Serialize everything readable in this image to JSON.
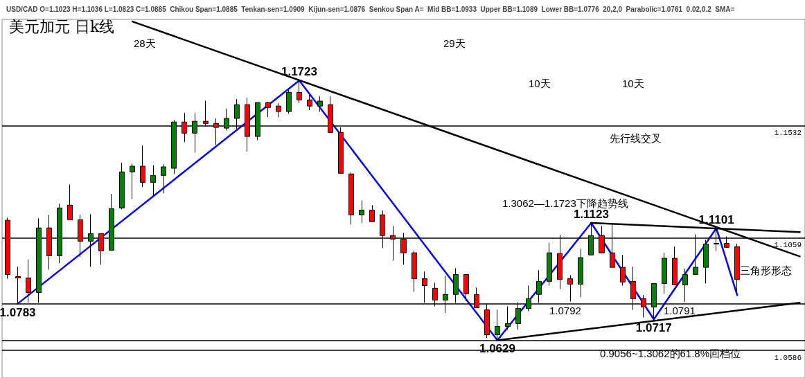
{
  "chart_data": {
    "type": "candlestick",
    "title": "美元加元 日k线",
    "subtitle": "USD/CAD O=1.1023 H=1.1036 L=1.0823 C=1.0885  Chikou Span=1.0885  Tenkan-sen=1.0909  Kijun-sen=1.0876  Senkou Span A=  Mid BB=1.0933  Upper BB=1.1089  Lower BB=1.0776  20,2,0  Parabolic=1.0761  0.02,0.2  SMA=",
    "categories": [
      null,
      null,
      null,
      null,
      null,
      null,
      null,
      null,
      null,
      null,
      null,
      null,
      null,
      null,
      null,
      null,
      null,
      null,
      null,
      null,
      null,
      null,
      null,
      null,
      null,
      null,
      null,
      null,
      null,
      null,
      null,
      null,
      null,
      null,
      null,
      null,
      null,
      null,
      null,
      null,
      null,
      null,
      null,
      null,
      null,
      null,
      null,
      null,
      null,
      null,
      null,
      null,
      null,
      null,
      null,
      null,
      null,
      null,
      null,
      null,
      null,
      null,
      null,
      null,
      null,
      null,
      null,
      null,
      null,
      null,
      null,
      null,
      null,
      null,
      null,
      null,
      null
    ],
    "ohlc": [
      [
        1.1134,
        1.1145,
        1.0888,
        1.0906
      ],
      [
        1.0897,
        1.0939,
        1.0783,
        1.0891
      ],
      [
        1.0891,
        1.0968,
        1.0787,
        1.083
      ],
      [
        1.083,
        1.1142,
        1.0787,
        1.1102
      ],
      [
        1.1102,
        1.1157,
        1.0927,
        1.0985
      ],
      [
        1.0985,
        1.1204,
        1.0953,
        1.1186
      ],
      [
        1.1198,
        1.1285,
        1.1136,
        1.1136
      ],
      [
        1.1136,
        1.1157,
        1.0979,
        1.1046
      ],
      [
        1.1046,
        1.116,
        1.0939,
        1.1078
      ],
      [
        1.1078,
        1.1078,
        1.0947,
        1.1005
      ],
      [
        1.1008,
        1.1245,
        1.1008,
        1.1183
      ],
      [
        1.1186,
        1.1376,
        1.118,
        1.1338
      ],
      [
        1.1338,
        1.1373,
        1.1224,
        1.1362
      ],
      [
        1.1362,
        1.1449,
        1.1274,
        1.1294
      ],
      [
        1.1294,
        1.1365,
        1.1239,
        1.1323
      ],
      [
        1.1323,
        1.137,
        1.1248,
        1.1359
      ],
      [
        1.1353,
        1.1556,
        1.1329,
        1.1548
      ],
      [
        1.1548,
        1.1586,
        1.1463,
        1.1501
      ],
      [
        1.1501,
        1.1586,
        1.1419,
        1.1551
      ],
      [
        1.1551,
        1.1638,
        1.153,
        1.1542
      ],
      [
        1.1542,
        1.1563,
        1.1452,
        1.1525
      ],
      [
        1.1522,
        1.1604,
        1.1513,
        1.1563
      ],
      [
        1.1563,
        1.1644,
        1.1519,
        1.1621
      ],
      [
        1.1621,
        1.165,
        1.1423,
        1.1487
      ],
      [
        1.1487,
        1.163,
        1.1472,
        1.163
      ],
      [
        1.163,
        1.1633,
        1.1569,
        1.1609
      ],
      [
        1.1615,
        1.1627,
        1.1569,
        1.1592
      ],
      [
        1.1592,
        1.1685,
        1.1583,
        1.1673
      ],
      [
        1.1673,
        1.1723,
        1.1627,
        1.1641
      ],
      [
        1.1641,
        1.1662,
        1.1598,
        1.1615
      ],
      [
        1.1615,
        1.1656,
        1.1592,
        1.1636
      ],
      [
        1.1621,
        1.1656,
        1.1504,
        1.1504
      ],
      [
        1.1504,
        1.1525,
        1.1332,
        1.1332
      ],
      [
        1.1329,
        1.1335,
        1.1116,
        1.1157
      ],
      [
        1.1157,
        1.1218,
        1.1122,
        1.1177
      ],
      [
        1.1177,
        1.1198,
        1.1128,
        1.1128
      ],
      [
        1.1157,
        1.1175,
        1.1017,
        1.107
      ],
      [
        1.107,
        1.111,
        1.0964,
        1.1055
      ],
      [
        1.1055,
        1.1081,
        1.0947,
        1.0997
      ],
      [
        1.0997,
        1.1006,
        1.0833,
        1.0888
      ],
      [
        1.0888,
        1.0918,
        1.0787,
        1.0859
      ],
      [
        1.0848,
        1.0871,
        1.0772,
        1.0798
      ],
      [
        1.0798,
        1.09,
        1.0743,
        1.0822
      ],
      [
        1.0822,
        1.0932,
        1.0787,
        1.0906
      ],
      [
        1.0906,
        1.0906,
        1.0795,
        1.0825
      ],
      [
        1.0822,
        1.0851,
        1.0766,
        1.0766
      ],
      [
        1.0757,
        1.0781,
        1.0638,
        1.0652
      ],
      [
        1.0652,
        1.0757,
        1.0629,
        1.0687
      ],
      [
        1.0687,
        1.0772,
        1.0673,
        1.0699
      ],
      [
        1.0699,
        1.0789,
        1.0673,
        1.0763
      ],
      [
        1.0763,
        1.0859,
        1.0751,
        1.0804
      ],
      [
        1.0822,
        1.0924,
        1.0787,
        1.0877
      ],
      [
        1.0877,
        1.104,
        1.0859,
        1.0997
      ],
      [
        1.0994,
        1.1073,
        1.0845,
        1.0885
      ],
      [
        1.0888,
        1.0903,
        1.0792,
        1.0865
      ],
      [
        1.0865,
        1.1014,
        1.081,
        1.0977
      ],
      [
        1.0988,
        1.1123,
        1.0988,
        1.107
      ],
      [
        1.107,
        1.111,
        1.0997,
        1.0997
      ],
      [
        1.0997,
        1.1119,
        1.0936,
        1.0936
      ],
      [
        1.0936,
        1.0988,
        1.0859,
        1.0874
      ],
      [
        1.0877,
        1.0939,
        1.0757,
        1.0804
      ],
      [
        1.0804,
        1.0819,
        1.0725,
        1.0769
      ],
      [
        1.0769,
        1.0868,
        1.0717,
        1.0868
      ],
      [
        1.0868,
        1.0997,
        1.0825,
        1.0974
      ],
      [
        1.0974,
        1.1023,
        1.0862,
        1.0862
      ],
      [
        1.0862,
        1.093,
        1.0791,
        1.0906
      ],
      [
        1.0906,
        1.1075,
        1.0906,
        1.0936
      ],
      [
        1.0936,
        1.1052,
        1.0868,
        1.1034
      ],
      [
        1.1034,
        1.1101,
        1.1005,
        1.1037
      ],
      [
        1.1037,
        1.1066,
        1.102,
        1.102
      ],
      [
        1.1023,
        1.1036,
        1.0823,
        1.0885
      ],
      null,
      null,
      null,
      null,
      null,
      null
    ],
    "colors": [
      "#ff0000",
      "#ff0000",
      "#ff0000",
      "#008000",
      "#ff0000",
      "#008000",
      "#ff0000",
      "#ff0000",
      "#008000",
      "#ff0000",
      "#008000",
      "#008000",
      "#008000",
      "#ff0000",
      "#008000",
      "#008000",
      "#008000",
      "#ff0000",
      "#008000",
      "#ff0000",
      "#ff0000",
      "#008000",
      "#008000",
      "#ff0000",
      "#008000",
      "#ff0000",
      "#ff0000",
      "#008000",
      "#ff0000",
      "#ff0000",
      "#008000",
      "#ff0000",
      "#ff0000",
      "#ff0000",
      "#008000",
      "#ff0000",
      "#ff0000",
      "#ff0000",
      "#ff0000",
      "#ff0000",
      "#ff0000",
      "#ff0000",
      "#008000",
      "#008000",
      "#ff0000",
      "#ff0000",
      "#ff0000",
      "#008000",
      "#008000",
      "#008000",
      "#008000",
      "#008000",
      "#008000",
      "#ff0000",
      "#ff0000",
      "#008000",
      "#008000",
      "#ff0000",
      "#ff0000",
      "#ff0000",
      "#ff0000",
      "#ff0000",
      "#008000",
      "#008000",
      "#ff0000",
      "#008000",
      "#008000",
      "#008000",
      "#008000",
      "#ff0000",
      "#ff0000",
      null,
      null,
      null,
      null,
      null,
      null
    ],
    "ylim": [
      1.047,
      1.198
    ],
    "tick_labels": false,
    "series": [
      {
        "type": "line",
        "color": "#0000ff",
        "marker": "none",
        "line_style": "solid",
        "values": [
          null,
          1.0783,
          null,
          null,
          null,
          null,
          null,
          null,
          null,
          null,
          null,
          null,
          null,
          null,
          null,
          null,
          null,
          null,
          null,
          null,
          null,
          null,
          null,
          null,
          null,
          null,
          null,
          null,
          1.1723,
          null,
          null,
          null,
          null,
          null,
          null,
          null,
          null,
          null,
          null,
          null,
          null,
          null,
          null,
          null,
          null,
          null,
          null,
          1.0629,
          null,
          null,
          null,
          null,
          null,
          null,
          null,
          null,
          1.1123,
          null,
          null,
          null,
          null,
          null,
          1.0717,
          null,
          null,
          null,
          null,
          null,
          1.1101,
          null,
          1.0819,
          null,
          null,
          null,
          null,
          null,
          null
        ],
        "value_labels": [
          null,
          "1.0783",
          null,
          null,
          null,
          null,
          null,
          null,
          null,
          null,
          null,
          null,
          null,
          null,
          null,
          null,
          null,
          null,
          null,
          null,
          null,
          null,
          null,
          null,
          null,
          null,
          null,
          null,
          "1.1723",
          null,
          null,
          null,
          null,
          null,
          null,
          null,
          null,
          null,
          null,
          null,
          null,
          null,
          null,
          null,
          null,
          null,
          null,
          "1.0629",
          null,
          null,
          null,
          null,
          null,
          null,
          null,
          null,
          "1.1123",
          null,
          null,
          null,
          null,
          null,
          "1.0717",
          null,
          null,
          null,
          null,
          null,
          "1.1101",
          null,
          null,
          null,
          null,
          null,
          null,
          null,
          null
        ]
      },
      {
        "type": "line",
        "color": "#000000",
        "marker": "none",
        "line_style": "solid",
        "values": [
          null,
          null,
          null,
          null,
          null,
          null,
          null,
          null,
          null,
          null,
          null,
          null,
          1.1971,
          null,
          null,
          null,
          null,
          null,
          null,
          null,
          null,
          null,
          null,
          null,
          null,
          null,
          null,
          null,
          null,
          null,
          null,
          null,
          null,
          null,
          null,
          null,
          null,
          null,
          null,
          null,
          null,
          null,
          null,
          null,
          null,
          null,
          null,
          null,
          null,
          null,
          null,
          null,
          null,
          null,
          null,
          null,
          null,
          null,
          null,
          null,
          null,
          null,
          null,
          null,
          null,
          null,
          null,
          null,
          null,
          null,
          null,
          null,
          null,
          null,
          null,
          null,
          1.0982
        ]
      },
      {
        "type": "line",
        "color": "#000000",
        "marker": "none",
        "line_style": "solid",
        "values": [
          null,
          null,
          null,
          null,
          null,
          null,
          null,
          null,
          null,
          null,
          null,
          null,
          null,
          null,
          null,
          null,
          null,
          null,
          null,
          null,
          null,
          null,
          null,
          null,
          null,
          null,
          null,
          null,
          null,
          null,
          null,
          null,
          null,
          null,
          null,
          null,
          null,
          null,
          null,
          null,
          null,
          null,
          null,
          null,
          null,
          null,
          null,
          null,
          null,
          null,
          null,
          null,
          null,
          null,
          null,
          null,
          1.1123,
          null,
          null,
          null,
          null,
          null,
          null,
          null,
          null,
          null,
          null,
          null,
          null,
          null,
          null,
          null,
          null,
          null,
          null,
          null,
          1.1084
        ]
      },
      {
        "type": "line",
        "color": "#000000",
        "marker": "none",
        "line_style": "solid",
        "values": [
          null,
          null,
          null,
          null,
          null,
          null,
          null,
          null,
          null,
          null,
          null,
          null,
          null,
          null,
          null,
          null,
          null,
          null,
          null,
          null,
          null,
          null,
          null,
          null,
          null,
          null,
          null,
          null,
          null,
          null,
          null,
          null,
          null,
          null,
          null,
          null,
          null,
          null,
          null,
          null,
          null,
          null,
          null,
          null,
          null,
          null,
          null,
          1.0629,
          null,
          null,
          null,
          null,
          null,
          null,
          null,
          null,
          null,
          null,
          null,
          null,
          null,
          null,
          null,
          null,
          null,
          null,
          null,
          null,
          null,
          null,
          null,
          null,
          null,
          null,
          null,
          null,
          1.0787
        ]
      }
    ],
    "ref_lines": [
      {
        "axis": "y",
        "value": 1.1532,
        "label": "1.1532",
        "color": "#000000"
      },
      {
        "axis": "y",
        "value": 1.1059,
        "label": "1.1059",
        "color": "#000000"
      },
      {
        "axis": "y",
        "value": 1.0586,
        "label": "1.0586",
        "color": "#000000"
      },
      {
        "axis": "y",
        "value": 1.0783,
        "label": null,
        "color": "#000000"
      },
      {
        "axis": "y",
        "value": 1.0629,
        "label": null,
        "color": "#000000"
      }
    ],
    "annotations": [
      "1.0792",
      "1.0791",
      "28天",
      "29天",
      "10天",
      "10天",
      "先行线交叉",
      "1.3062—1.1723下降趋势线",
      "三角形形态",
      "0.9056~1.3062的61.8%回档位"
    ]
  }
}
